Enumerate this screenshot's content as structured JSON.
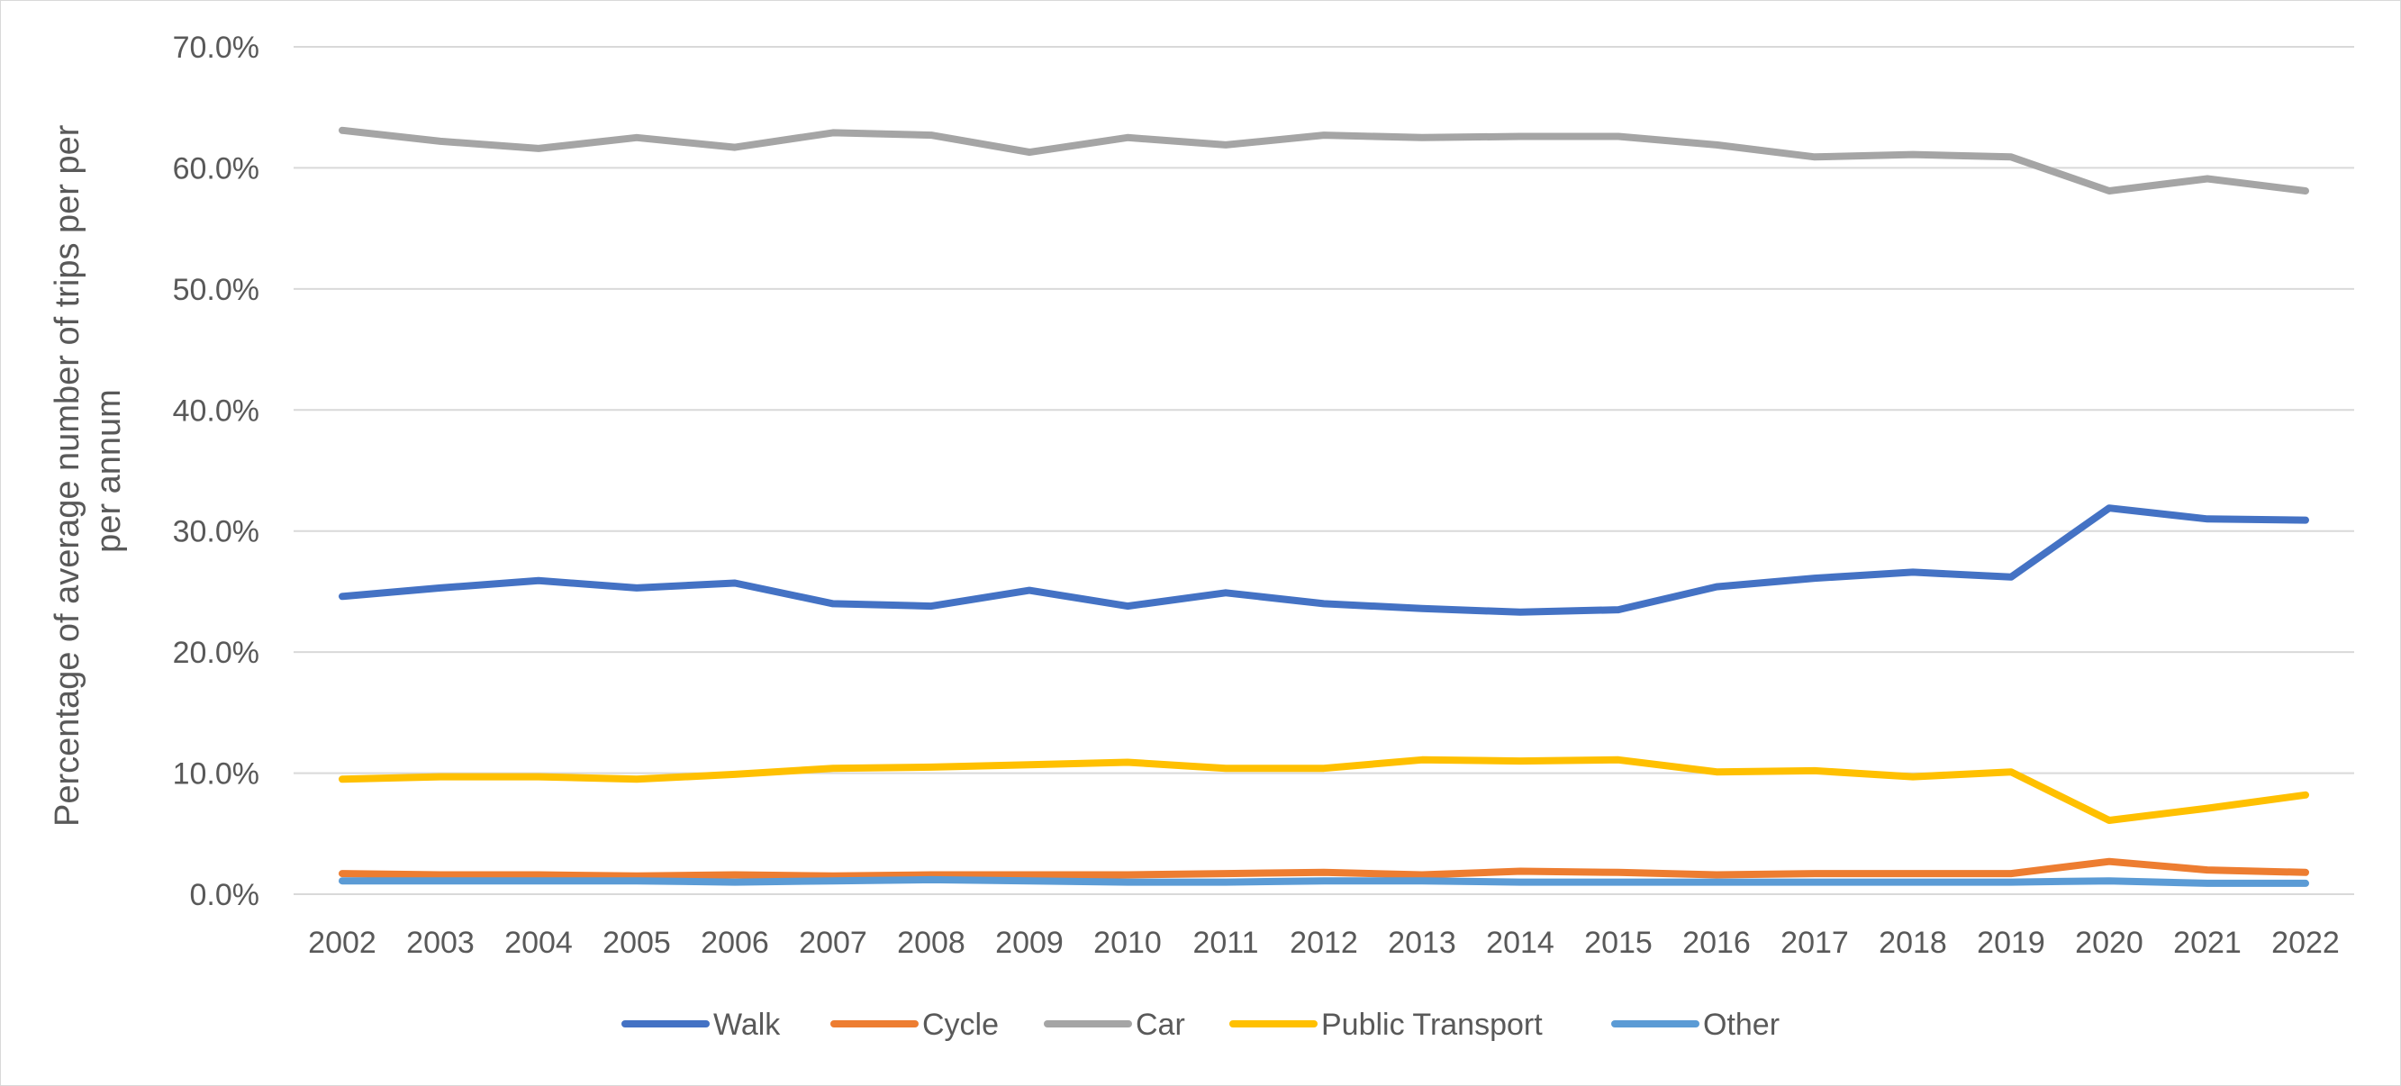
{
  "chart_data": {
    "type": "line",
    "title": "",
    "xlabel": "",
    "ylabel_lines": [
      "Percentage of average number of trips per per",
      "per annum"
    ],
    "ylim": [
      0,
      70
    ],
    "yticks": [
      "0.0%",
      "10.0%",
      "20.0%",
      "30.0%",
      "40.0%",
      "50.0%",
      "60.0%",
      "70.0%"
    ],
    "ytick_values": [
      0,
      10,
      20,
      30,
      40,
      50,
      60,
      70
    ],
    "grid": "horizontal",
    "legend_position": "bottom",
    "categories": [
      "2002",
      "2003",
      "2004",
      "2005",
      "2006",
      "2007",
      "2008",
      "2009",
      "2010",
      "2011",
      "2012",
      "2013",
      "2014",
      "2015",
      "2016",
      "2017",
      "2018",
      "2019",
      "2020",
      "2021",
      "2022"
    ],
    "series": [
      {
        "name": "Walk",
        "color": "#4472C4",
        "values": [
          24.6,
          25.3,
          25.9,
          25.3,
          25.7,
          24.0,
          23.8,
          25.1,
          23.8,
          24.9,
          24.0,
          23.6,
          23.3,
          23.5,
          25.4,
          26.1,
          26.6,
          26.2,
          31.9,
          31.0,
          30.9
        ]
      },
      {
        "name": "Cycle",
        "color": "#ED7D31",
        "values": [
          1.7,
          1.6,
          1.6,
          1.5,
          1.6,
          1.5,
          1.6,
          1.6,
          1.6,
          1.7,
          1.8,
          1.6,
          1.9,
          1.8,
          1.6,
          1.7,
          1.7,
          1.7,
          2.7,
          2.0,
          1.8
        ]
      },
      {
        "name": "Car",
        "color": "#A5A5A5",
        "values": [
          63.1,
          62.2,
          61.6,
          62.5,
          61.7,
          62.9,
          62.7,
          61.3,
          62.5,
          61.9,
          62.7,
          62.5,
          62.6,
          62.6,
          61.9,
          60.9,
          61.1,
          60.9,
          58.1,
          59.1,
          58.1
        ]
      },
      {
        "name": "Public Transport",
        "color": "#FFC000",
        "values": [
          9.5,
          9.7,
          9.7,
          9.5,
          9.9,
          10.4,
          10.5,
          10.7,
          10.9,
          10.4,
          10.4,
          11.1,
          11.0,
          11.1,
          10.1,
          10.2,
          9.7,
          10.1,
          6.1,
          7.1,
          8.2
        ]
      },
      {
        "name": "Other",
        "color": "#5B9BD5",
        "values": [
          1.1,
          1.1,
          1.1,
          1.1,
          1.0,
          1.1,
          1.2,
          1.1,
          1.0,
          1.0,
          1.1,
          1.1,
          1.0,
          1.0,
          1.0,
          1.0,
          1.0,
          1.0,
          1.1,
          0.9,
          0.9
        ]
      }
    ]
  }
}
